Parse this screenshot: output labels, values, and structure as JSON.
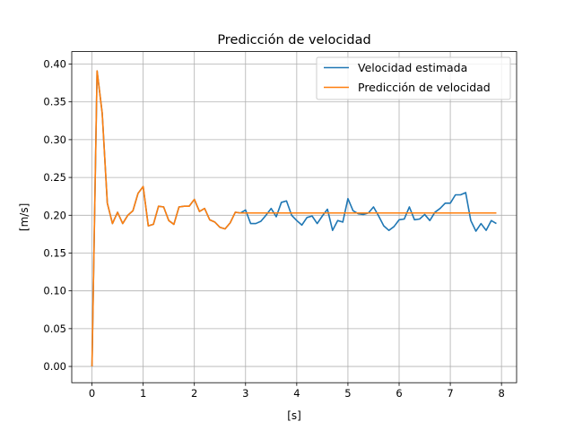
{
  "chart_data": {
    "type": "line",
    "title": "Predicción de velocidad",
    "xlabel": "[s]",
    "ylabel": "[m/s]",
    "xlim": [
      -0.395,
      8.295
    ],
    "ylim": [
      -0.0215,
      0.4165
    ],
    "xticks": [
      0,
      1,
      2,
      3,
      4,
      5,
      6,
      7,
      8
    ],
    "yticks": [
      0.0,
      0.05,
      0.1,
      0.15,
      0.2,
      0.25,
      0.3,
      0.35,
      0.4
    ],
    "xtick_labels": [
      "0",
      "1",
      "2",
      "3",
      "4",
      "5",
      "6",
      "7",
      "8"
    ],
    "ytick_labels": [
      "0.00",
      "0.05",
      "0.10",
      "0.15",
      "0.20",
      "0.25",
      "0.30",
      "0.35",
      "0.40"
    ],
    "grid": true,
    "legend_position": "top-right",
    "series": [
      {
        "name": "Velocidad estimada",
        "color": "#1f77b4",
        "x": [
          0.0,
          0.1,
          0.2,
          0.3,
          0.4,
          0.5,
          0.6,
          0.7,
          0.8,
          0.9,
          1.0,
          1.1,
          1.2,
          1.3,
          1.4,
          1.5,
          1.6,
          1.7,
          1.8,
          1.9,
          2.0,
          2.1,
          2.2,
          2.3,
          2.4,
          2.5,
          2.6,
          2.7,
          2.8,
          2.9,
          3.0,
          3.1,
          3.2,
          3.3,
          3.4,
          3.5,
          3.6,
          3.7,
          3.8,
          3.9,
          4.0,
          4.1,
          4.2,
          4.3,
          4.4,
          4.5,
          4.6,
          4.7,
          4.8,
          4.9,
          5.0,
          5.1,
          5.2,
          5.3,
          5.4,
          5.5,
          5.6,
          5.7,
          5.8,
          5.9,
          6.0,
          6.1,
          6.2,
          6.3,
          6.4,
          6.5,
          6.6,
          6.7,
          6.8,
          6.9,
          7.0,
          7.1,
          7.2,
          7.3,
          7.4,
          7.5,
          7.6,
          7.7,
          7.8,
          7.9
        ],
        "y": [
          0.0,
          0.391,
          0.335,
          0.216,
          0.189,
          0.204,
          0.189,
          0.2,
          0.206,
          0.229,
          0.238,
          0.186,
          0.188,
          0.212,
          0.211,
          0.193,
          0.188,
          0.211,
          0.212,
          0.212,
          0.221,
          0.205,
          0.209,
          0.194,
          0.191,
          0.184,
          0.182,
          0.19,
          0.204,
          0.203,
          0.207,
          0.189,
          0.189,
          0.192,
          0.2,
          0.209,
          0.198,
          0.217,
          0.219,
          0.2,
          0.193,
          0.187,
          0.197,
          0.199,
          0.189,
          0.199,
          0.208,
          0.18,
          0.193,
          0.191,
          0.222,
          0.206,
          0.202,
          0.201,
          0.203,
          0.211,
          0.199,
          0.186,
          0.18,
          0.185,
          0.194,
          0.195,
          0.211,
          0.194,
          0.195,
          0.201,
          0.193,
          0.204,
          0.209,
          0.216,
          0.216,
          0.227,
          0.227,
          0.23,
          0.193,
          0.179,
          0.189,
          0.18,
          0.193,
          0.189
        ]
      },
      {
        "name": "Predicción de velocidad",
        "color": "#ff7f0e",
        "x": [
          0.0,
          0.1,
          0.2,
          0.3,
          0.4,
          0.5,
          0.6,
          0.7,
          0.8,
          0.9,
          1.0,
          1.1,
          1.2,
          1.3,
          1.4,
          1.5,
          1.6,
          1.7,
          1.8,
          1.9,
          2.0,
          2.1,
          2.2,
          2.3,
          2.4,
          2.5,
          2.6,
          2.7,
          2.8,
          2.9,
          3.0,
          7.9
        ],
        "y": [
          0.0,
          0.391,
          0.335,
          0.216,
          0.189,
          0.204,
          0.189,
          0.2,
          0.206,
          0.229,
          0.238,
          0.186,
          0.188,
          0.212,
          0.211,
          0.193,
          0.188,
          0.211,
          0.212,
          0.212,
          0.221,
          0.205,
          0.209,
          0.194,
          0.191,
          0.184,
          0.182,
          0.19,
          0.204,
          0.203,
          0.203,
          0.203
        ]
      }
    ]
  }
}
